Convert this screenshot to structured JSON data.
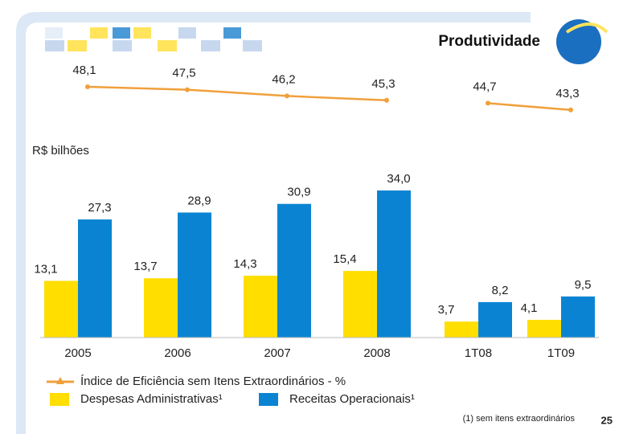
{
  "title": "Produtividade",
  "page_number": "25",
  "chart_data": {
    "type": "bar",
    "unit_label": "R$ bilhões",
    "footnote": "(1) sem itens extraordinários",
    "categories": [
      "2005",
      "2006",
      "2007",
      "2008",
      "1T08",
      "1T09"
    ],
    "series": [
      {
        "name": "Despesas Administrativas¹",
        "color": "#ffde00",
        "values": [
          13.1,
          13.7,
          14.3,
          15.4,
          3.7,
          4.1
        ],
        "value_labels": [
          "13,1",
          "13,7",
          "14,3",
          "15,4",
          "3,7",
          "4,1"
        ]
      },
      {
        "name": "Receitas Operacionais¹",
        "color": "#0a84d2",
        "values": [
          27.3,
          28.9,
          30.9,
          34.0,
          8.2,
          9.5
        ],
        "value_labels": [
          "27,3",
          "28,9",
          "30,9",
          "34,0",
          "8,2",
          "9,5"
        ]
      }
    ],
    "line": {
      "name": "Índice de Eficiência sem Itens Extraordinários - %",
      "color": "#f0a03c",
      "values": [
        48.1,
        47.5,
        46.2,
        45.3,
        44.7,
        43.3
      ],
      "value_labels": [
        "48,1",
        "47,5",
        "46,2",
        "45,3",
        "44,7",
        "43,3"
      ]
    }
  }
}
